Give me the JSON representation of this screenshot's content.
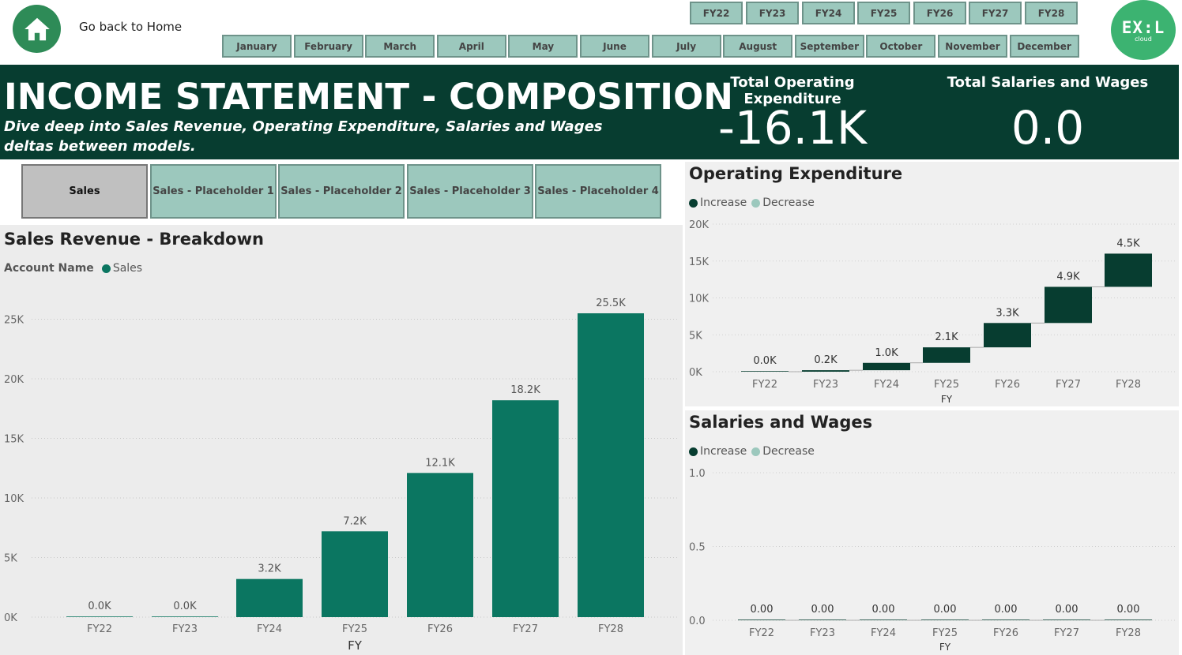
{
  "nav": {
    "home_label": "Go back to Home",
    "fy_buttons": [
      "FY22",
      "FY23",
      "FY24",
      "FY25",
      "FY26",
      "FY27",
      "FY28"
    ],
    "month_buttons": [
      "January",
      "February",
      "March",
      "April",
      "May",
      "June",
      "July",
      "August",
      "September",
      "October",
      "November",
      "December"
    ]
  },
  "logo": {
    "main": "EX:L",
    "sub": "cloud"
  },
  "banner": {
    "title": "INCOME STATEMENT - COMPOSITION",
    "subtitle": "Dive deep into Sales Revenue, Operating Expenditure, Salaries and Wages deltas between models.",
    "kpis": [
      {
        "title": "Total Operating Expenditure",
        "value": "-16.1K"
      },
      {
        "title": "Total Salaries and Wages",
        "value": "0.0"
      }
    ]
  },
  "tabs": [
    {
      "label": "Sales",
      "active": true
    },
    {
      "label": "Sales - Placeholder 1",
      "active": false
    },
    {
      "label": "Sales - Placeholder 2",
      "active": false
    },
    {
      "label": "Sales - Placeholder 3",
      "active": false
    },
    {
      "label": "Sales - Placeholder 4",
      "active": false
    }
  ],
  "colors": {
    "banner": "#073d30",
    "slicer": "#9cc8bd",
    "sales_bar": "#0b7661",
    "increase": "#073d30",
    "decrease": "#9cc8bd"
  },
  "chart_data": [
    {
      "id": "sales",
      "type": "bar",
      "title": "Sales Revenue - Breakdown",
      "legend_title": "Account Name",
      "series": [
        {
          "name": "Sales",
          "values": [
            0,
            0.04,
            3.2,
            7.2,
            12.1,
            18.2,
            25.5
          ]
        }
      ],
      "categories": [
        "FY22",
        "FY23",
        "FY24",
        "FY25",
        "FY26",
        "FY27",
        "FY28"
      ],
      "data_labels": [
        "0.0K",
        "0.0K",
        "3.2K",
        "7.2K",
        "12.1K",
        "18.2K",
        "25.5K"
      ],
      "xlabel": "FY",
      "ylabel": "",
      "y_ticks": [
        "0K",
        "5K",
        "10K",
        "15K",
        "20K",
        "25K"
      ],
      "ylim": [
        0,
        25.5
      ],
      "grid": true,
      "legend_position": "top-left"
    },
    {
      "id": "opex",
      "type": "waterfall",
      "title": "Operating Expenditure",
      "legend": [
        "Increase",
        "Decrease"
      ],
      "categories": [
        "FY22",
        "FY23",
        "FY24",
        "FY25",
        "FY26",
        "FY27",
        "FY28"
      ],
      "deltas": [
        0.0,
        0.2,
        1.0,
        2.1,
        3.3,
        4.9,
        4.5
      ],
      "data_labels": [
        "0.0K",
        "0.2K",
        "1.0K",
        "2.1K",
        "3.3K",
        "4.9K",
        "4.5K"
      ],
      "xlabel": "FY",
      "y_ticks": [
        "0K",
        "5K",
        "10K",
        "15K",
        "20K"
      ],
      "ylim": [
        0,
        20
      ],
      "grid": true,
      "legend_position": "top-left"
    },
    {
      "id": "salaries",
      "type": "waterfall",
      "title": "Salaries and Wages",
      "legend": [
        "Increase",
        "Decrease"
      ],
      "categories": [
        "FY22",
        "FY23",
        "FY24",
        "FY25",
        "FY26",
        "FY27",
        "FY28"
      ],
      "deltas": [
        0,
        0,
        0,
        0,
        0,
        0,
        0
      ],
      "data_labels": [
        "0.00",
        "0.00",
        "0.00",
        "0.00",
        "0.00",
        "0.00",
        "0.00"
      ],
      "xlabel": "FY",
      "y_ticks": [
        "0.0",
        "0.5",
        "1.0"
      ],
      "ylim": [
        0,
        1
      ],
      "grid": true,
      "legend_position": "top-left"
    }
  ]
}
